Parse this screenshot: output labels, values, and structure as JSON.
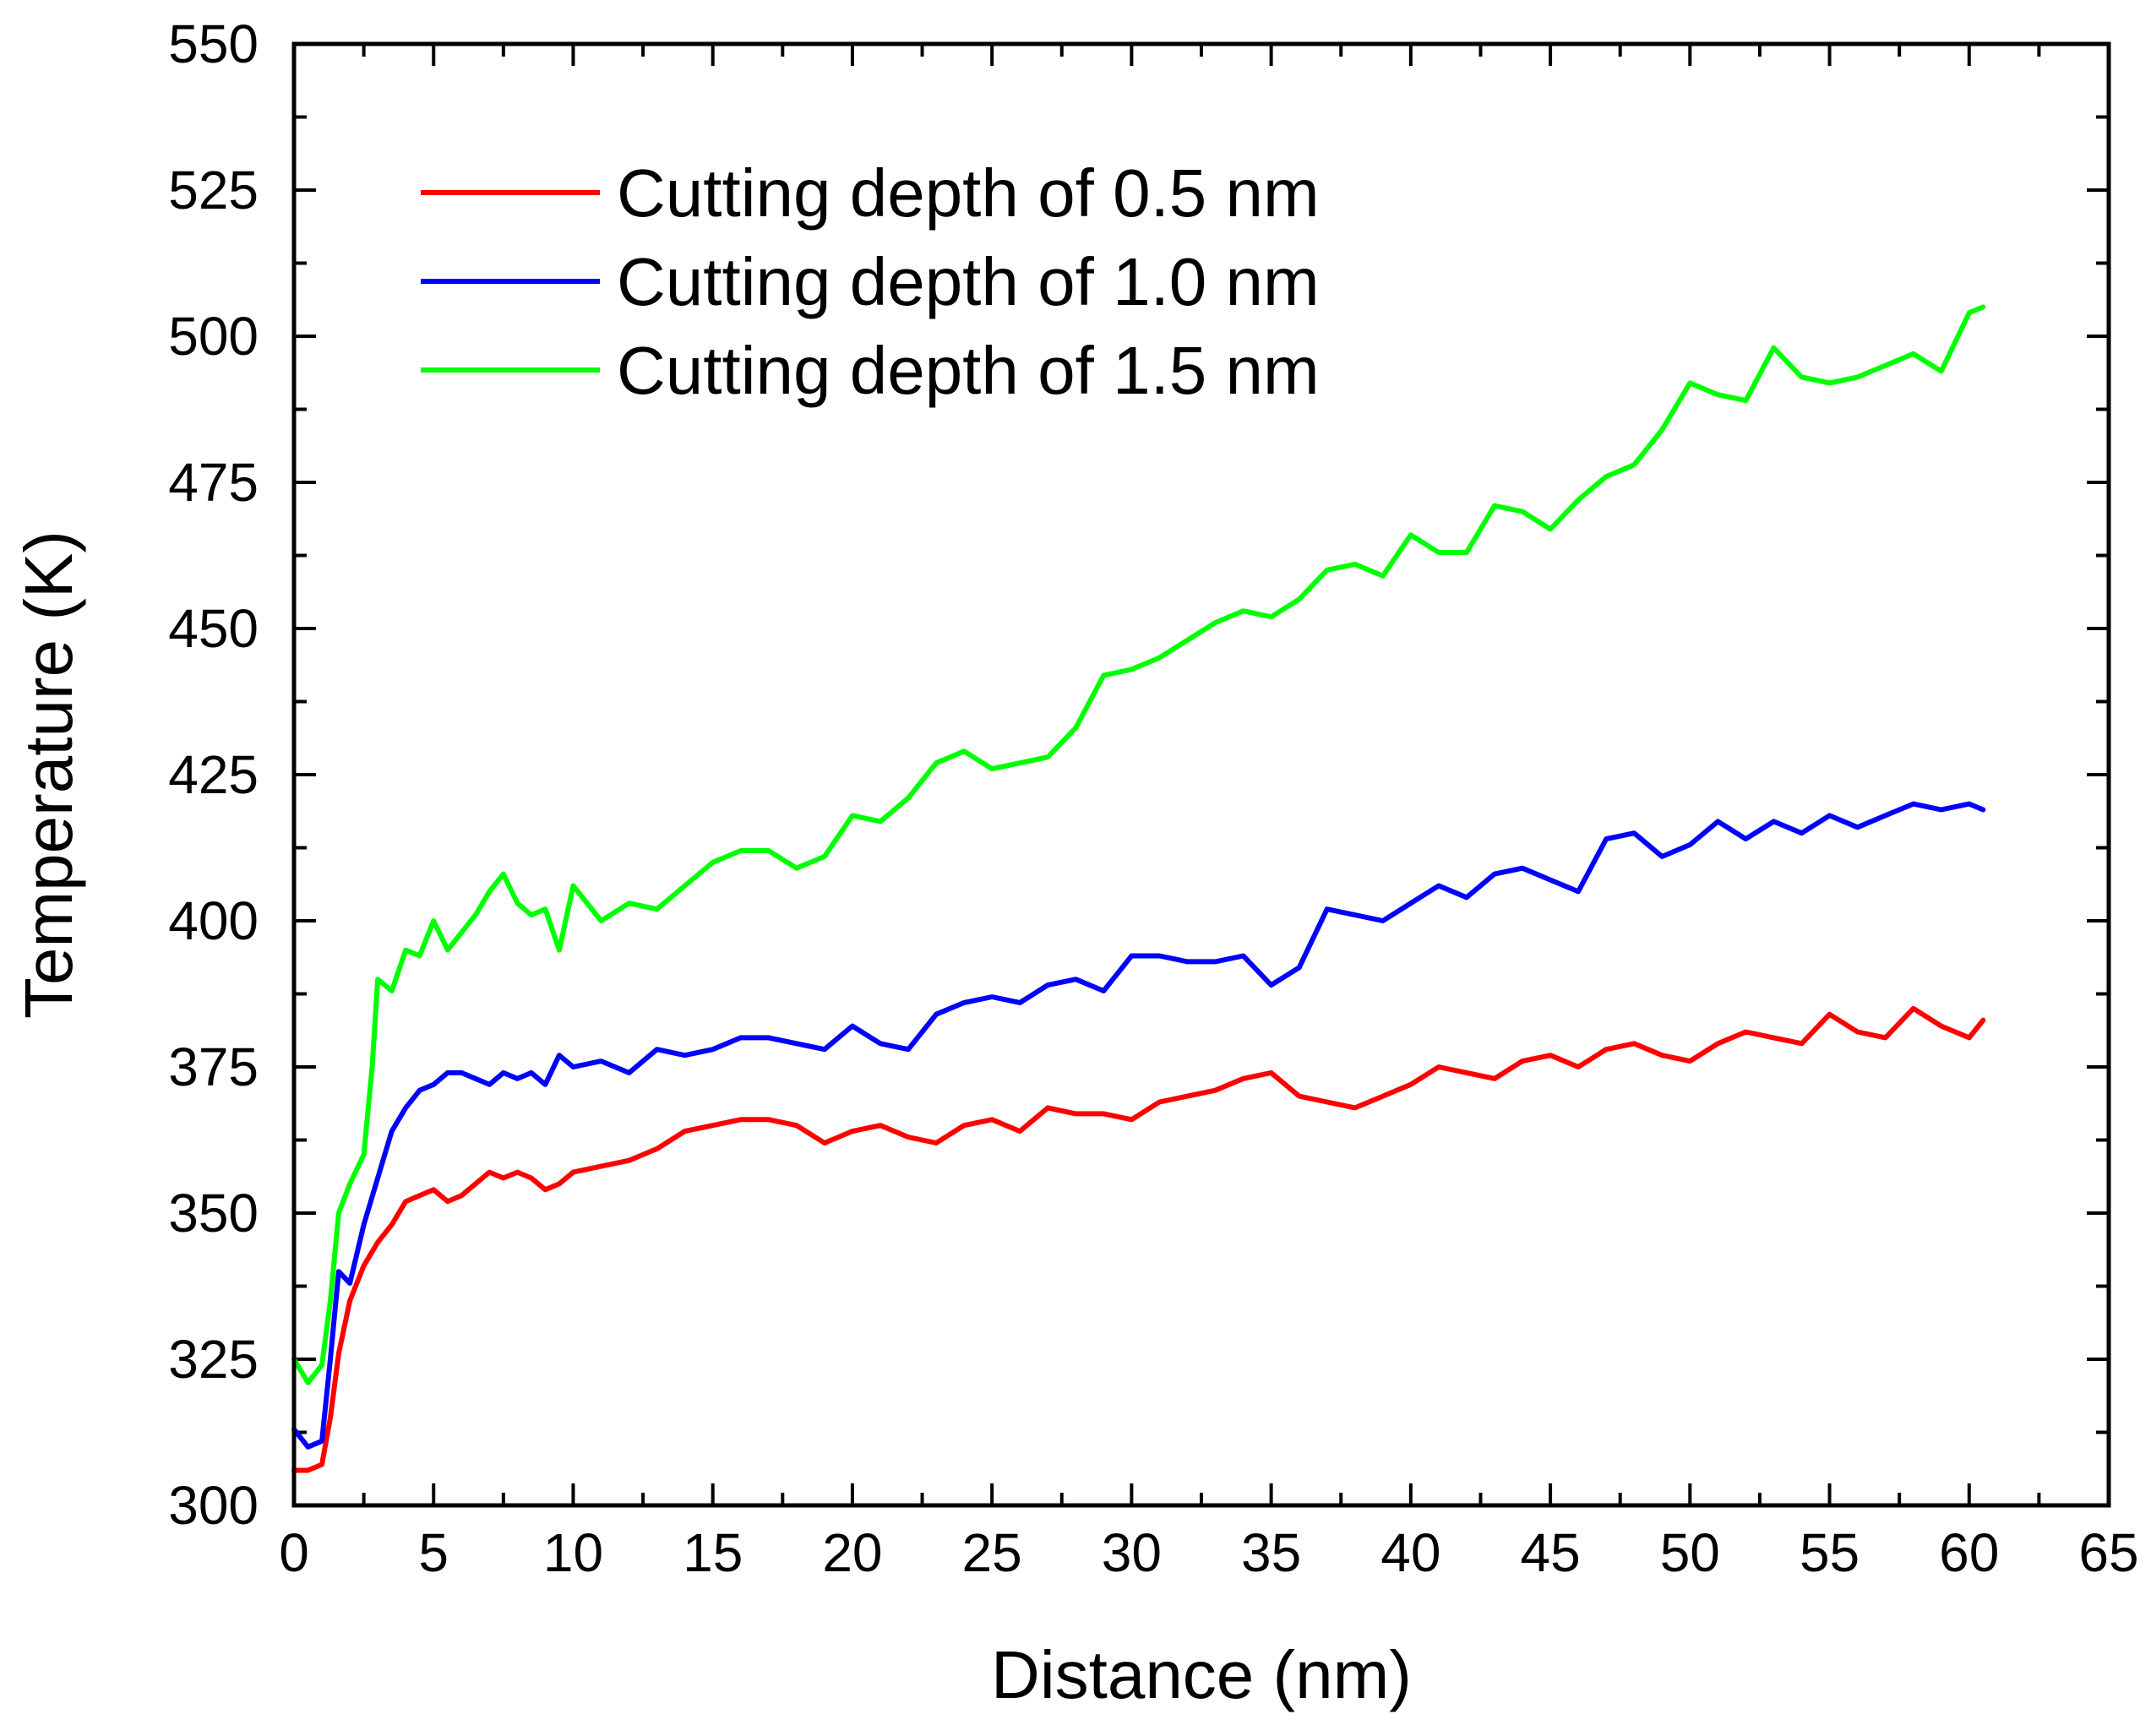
{
  "chart_data": {
    "type": "line",
    "title": "",
    "xlabel": "Distance (nm)",
    "ylabel": "Temperature (K)",
    "xlim": [
      0,
      65
    ],
    "ylim": [
      300,
      550
    ],
    "xticks": [
      0,
      5,
      10,
      15,
      20,
      25,
      30,
      35,
      40,
      45,
      50,
      55,
      60,
      65
    ],
    "yticks": [
      300,
      325,
      350,
      375,
      400,
      425,
      450,
      475,
      500,
      525,
      550
    ],
    "grid": false,
    "legend_position": "top-left",
    "series": [
      {
        "name": "Cutting depth of 0.5 nm",
        "color": "#ff0000",
        "x": [
          0,
          0.5,
          1,
          1.3,
          1.6,
          2,
          2.5,
          3,
          3.5,
          4,
          4.5,
          5,
          5.5,
          6,
          6.5,
          7,
          7.5,
          8,
          8.5,
          9,
          9.5,
          10,
          11,
          12,
          13,
          14,
          15,
          16,
          17,
          18,
          19,
          20,
          21,
          22,
          23,
          24,
          25,
          26,
          27,
          28,
          29,
          30,
          31,
          32,
          33,
          34,
          35,
          36,
          37,
          38,
          39,
          40,
          41,
          42,
          43,
          44,
          45,
          46,
          47,
          48,
          49,
          50,
          51,
          52,
          53,
          54,
          55,
          56,
          57,
          58,
          59,
          60,
          60.5
        ],
        "values": [
          306,
          306,
          307,
          315,
          326,
          335,
          341,
          345,
          348,
          352,
          353,
          354,
          352,
          353,
          355,
          357,
          356,
          357,
          356,
          354,
          355,
          357,
          358,
          359,
          361,
          364,
          365,
          366,
          366,
          365,
          362,
          364,
          365,
          363,
          362,
          365,
          366,
          364,
          368,
          367,
          367,
          366,
          369,
          370,
          371,
          373,
          374,
          370,
          369,
          368,
          370,
          372,
          375,
          374,
          373,
          376,
          377,
          375,
          378,
          379,
          377,
          376,
          379,
          381,
          380,
          379,
          384,
          381,
          380,
          385,
          382,
          380,
          383
        ]
      },
      {
        "name": "Cutting depth of 1.0 nm",
        "color": "#0000ff",
        "x": [
          0,
          0.5,
          1,
          1.3,
          1.6,
          2,
          2.5,
          3,
          3.5,
          4,
          4.5,
          5,
          5.5,
          6,
          6.5,
          7,
          7.5,
          8,
          8.5,
          9,
          9.5,
          10,
          11,
          12,
          13,
          14,
          15,
          16,
          17,
          18,
          19,
          20,
          21,
          22,
          23,
          24,
          25,
          26,
          27,
          28,
          29,
          30,
          31,
          32,
          33,
          34,
          35,
          36,
          37,
          38,
          39,
          40,
          41,
          42,
          43,
          44,
          45,
          46,
          47,
          48,
          49,
          50,
          51,
          52,
          53,
          54,
          55,
          56,
          57,
          58,
          59,
          60,
          60.5
        ],
        "values": [
          313,
          310,
          311,
          325,
          340,
          338,
          348,
          356,
          364,
          368,
          371,
          372,
          374,
          374,
          373,
          372,
          374,
          373,
          374,
          372,
          377,
          375,
          376,
          374,
          378,
          377,
          378,
          380,
          380,
          379,
          378,
          382,
          379,
          378,
          384,
          386,
          387,
          386,
          389,
          390,
          388,
          394,
          394,
          393,
          393,
          394,
          389,
          392,
          402,
          401,
          400,
          403,
          406,
          404,
          408,
          409,
          407,
          405,
          414,
          415,
          411,
          413,
          417,
          414,
          417,
          415,
          418,
          416,
          418,
          420,
          419,
          420,
          419
        ]
      },
      {
        "name": "Cutting depth of 1.5 nm",
        "color": "#00ff00",
        "x": [
          0,
          0.5,
          1,
          1.3,
          1.6,
          2,
          2.5,
          2.8,
          3,
          3.5,
          4,
          4.5,
          5,
          5.5,
          6,
          6.5,
          7,
          7.5,
          8,
          8.5,
          9,
          9.5,
          10,
          11,
          12,
          13,
          14,
          15,
          16,
          17,
          18,
          19,
          20,
          21,
          22,
          23,
          24,
          25,
          26,
          27,
          28,
          29,
          30,
          31,
          32,
          33,
          34,
          35,
          36,
          37,
          38,
          39,
          40,
          41,
          42,
          43,
          44,
          45,
          46,
          47,
          48,
          49,
          50,
          51,
          52,
          53,
          54,
          55,
          56,
          57,
          58,
          59,
          60,
          60.5
        ],
        "values": [
          325,
          321,
          324,
          335,
          350,
          355,
          360,
          375,
          390,
          388,
          395,
          394,
          400,
          395,
          398,
          401,
          405,
          408,
          403,
          401,
          402,
          395,
          406,
          400,
          403,
          402,
          406,
          410,
          412,
          412,
          409,
          411,
          418,
          417,
          421,
          427,
          429,
          426,
          427,
          428,
          433,
          442,
          443,
          445,
          448,
          451,
          453,
          452,
          455,
          460,
          461,
          459,
          466,
          463,
          463,
          471,
          470,
          467,
          472,
          476,
          478,
          484,
          492,
          490,
          489,
          498,
          493,
          492,
          493,
          495,
          497,
          494,
          504,
          505
        ]
      }
    ]
  }
}
